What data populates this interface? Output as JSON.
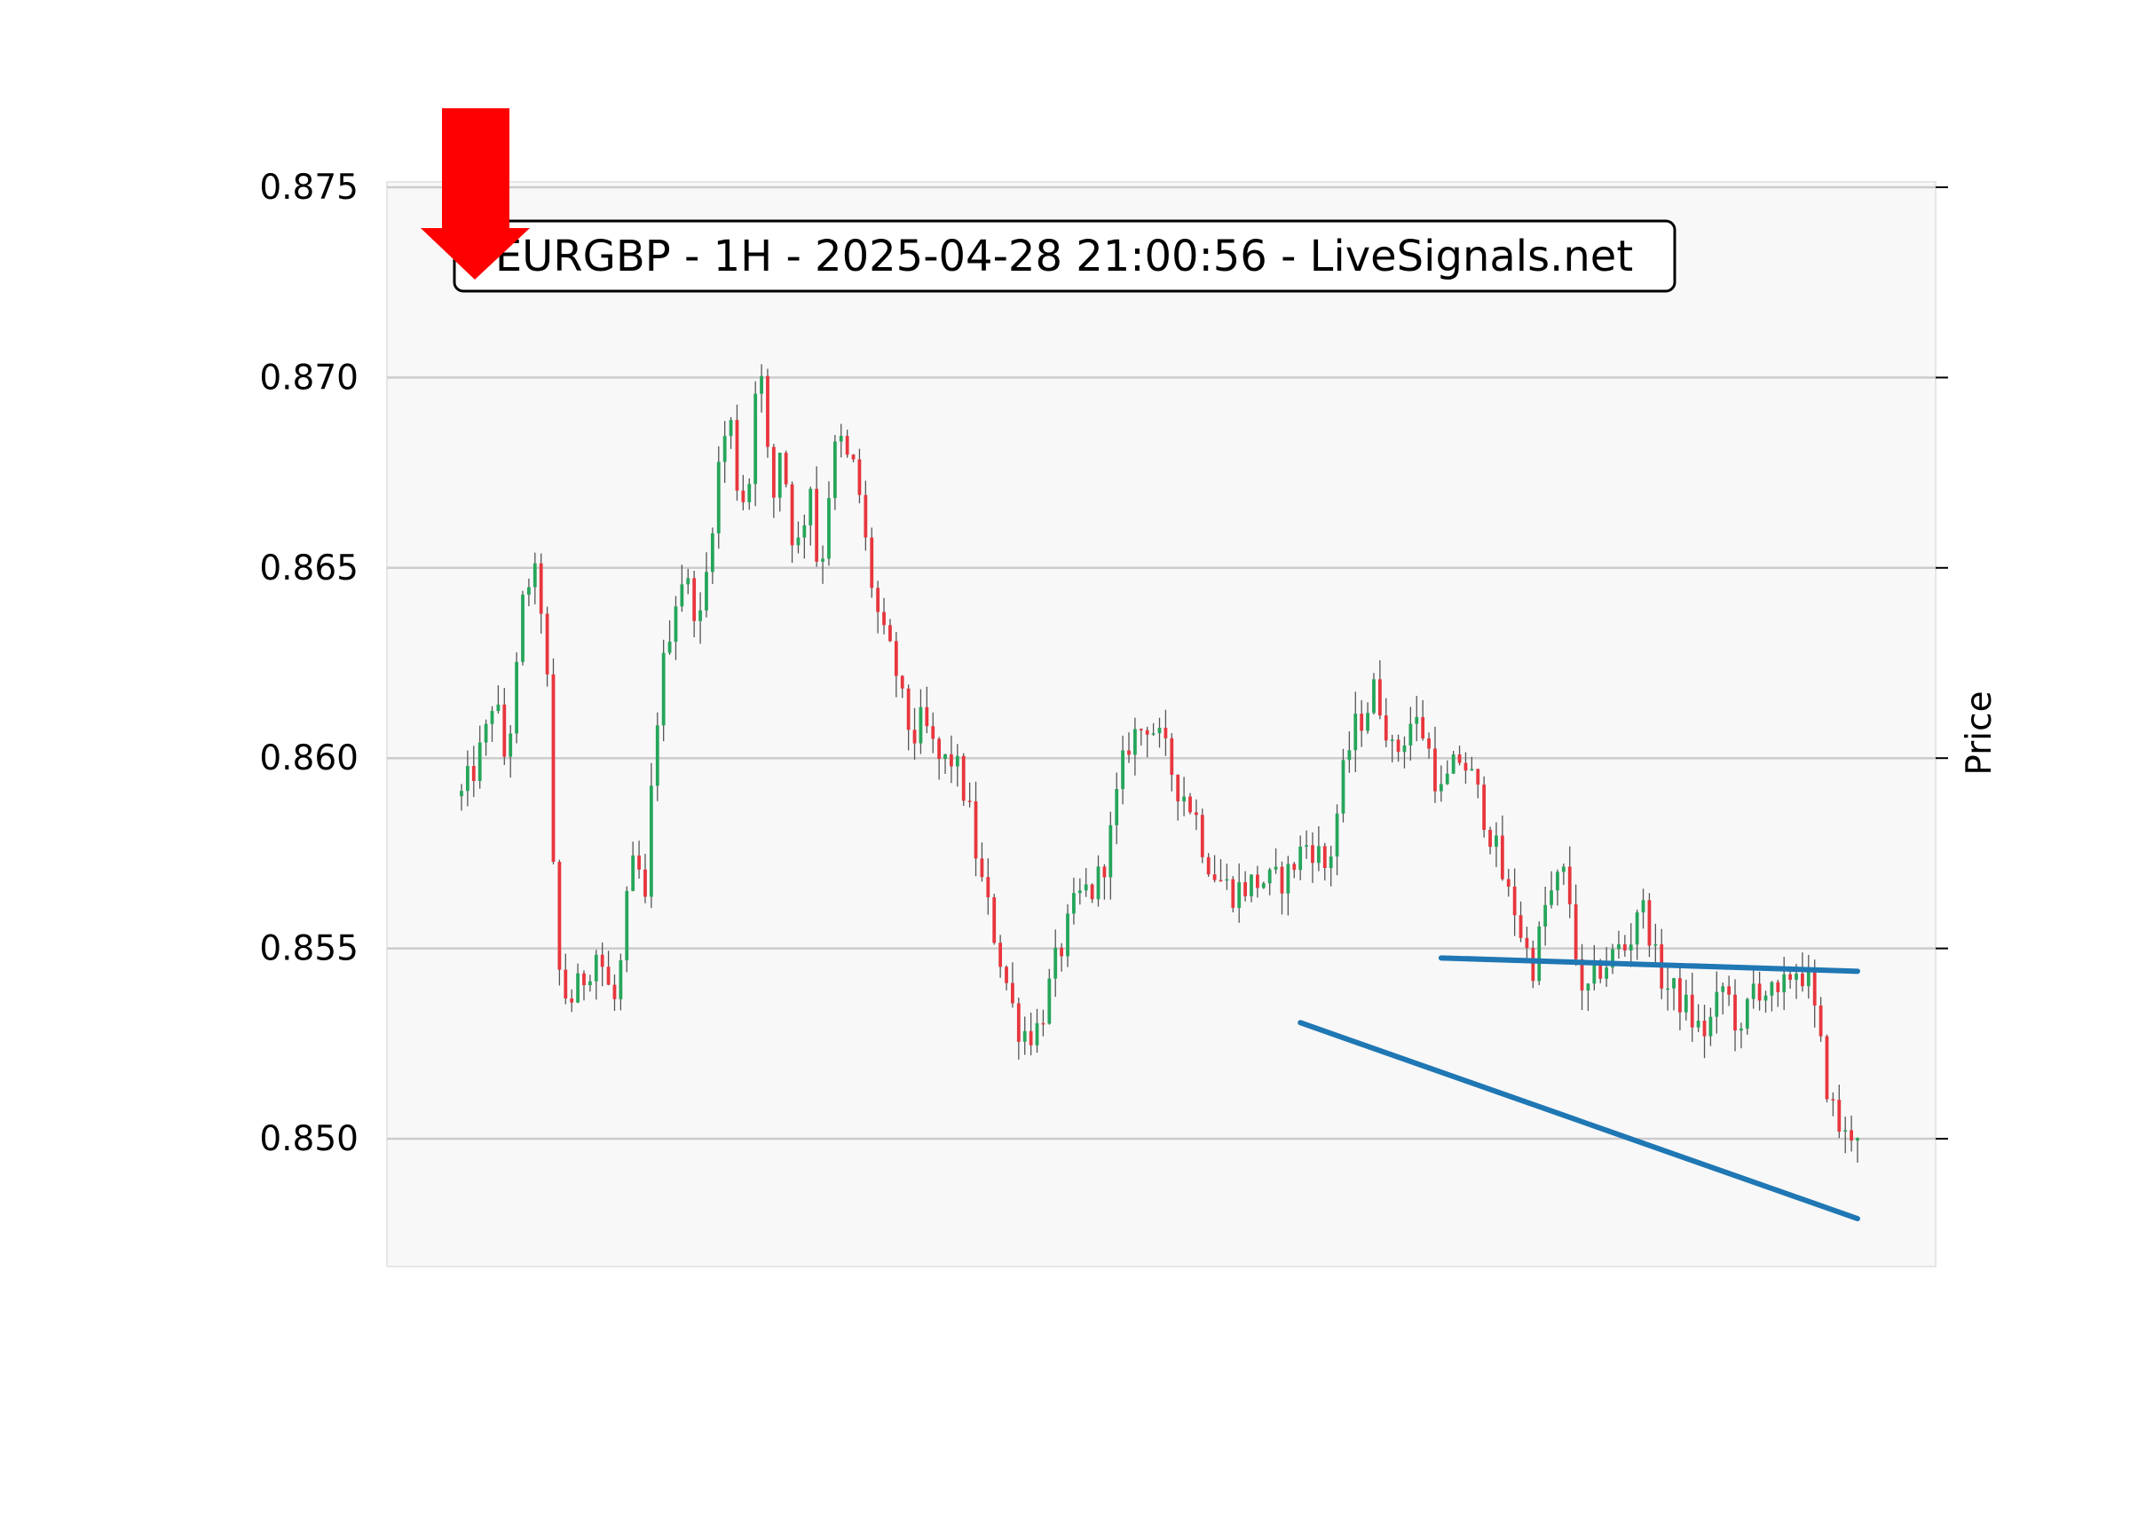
{
  "chart_data": {
    "type": "candlestick",
    "title": "EURGBP - 1H - 2025-04-28 21:00:56 - LiveSignals.net",
    "ylabel": "Price",
    "xlabel": "",
    "ylim": [
      0.8465,
      0.875
    ],
    "yticks": [
      "0.875",
      "0.870",
      "0.865",
      "0.860",
      "0.855",
      "0.850"
    ],
    "ytick_values": [
      0.875,
      0.87,
      0.865,
      0.86,
      0.855,
      0.85
    ],
    "grid": true,
    "n_candles": 229,
    "signal_marker": {
      "type": "arrow-down",
      "color": "#ff0000",
      "candle_index": 2
    },
    "trendlines": [
      {
        "name": "resistance",
        "color": "#1f77b4",
        "from": {
          "candle": 160,
          "price": 0.85475
        },
        "to": {
          "candle": 228,
          "price": 0.8544
        }
      },
      {
        "name": "support",
        "color": "#1f77b4",
        "from": {
          "candle": 137,
          "price": 0.85305
        },
        "to": {
          "candle": 228,
          "price": 0.8479
        }
      }
    ],
    "anchors": [
      [
        0,
        0.859
      ],
      [
        3,
        0.8598
      ],
      [
        5,
        0.8605
      ],
      [
        7,
        0.8618
      ],
      [
        9,
        0.86
      ],
      [
        11,
        0.8612
      ],
      [
        13,
        0.864
      ],
      [
        15,
        0.865
      ],
      [
        17,
        0.864
      ],
      [
        18,
        0.863
      ],
      [
        19,
        0.858
      ],
      [
        21,
        0.854
      ],
      [
        23,
        0.8536
      ],
      [
        25,
        0.854
      ],
      [
        27,
        0.8545
      ],
      [
        29,
        0.855
      ],
      [
        31,
        0.854
      ],
      [
        33,
        0.8535
      ],
      [
        35,
        0.856
      ],
      [
        37,
        0.8575
      ],
      [
        39,
        0.856
      ],
      [
        41,
        0.8605
      ],
      [
        43,
        0.8625
      ],
      [
        45,
        0.864
      ],
      [
        47,
        0.8648
      ],
      [
        49,
        0.8642
      ],
      [
        51,
        0.8635
      ],
      [
        53,
        0.866
      ],
      [
        55,
        0.868
      ],
      [
        57,
        0.869
      ],
      [
        59,
        0.8668
      ],
      [
        61,
        0.867
      ],
      [
        63,
        0.871
      ],
      [
        64,
        0.8695
      ],
      [
        66,
        0.8665
      ],
      [
        68,
        0.8685
      ],
      [
        70,
        0.866
      ],
      [
        72,
        0.8655
      ],
      [
        74,
        0.8675
      ],
      [
        76,
        0.8645
      ],
      [
        78,
        0.867
      ],
      [
        80,
        0.8685
      ],
      [
        82,
        0.8678
      ],
      [
        84,
        0.8675
      ],
      [
        86,
        0.8655
      ],
      [
        88,
        0.864
      ],
      [
        90,
        0.863
      ],
      [
        92,
        0.8625
      ],
      [
        94,
        0.8612
      ],
      [
        96,
        0.8605
      ],
      [
        98,
        0.861
      ],
      [
        100,
        0.8603
      ],
      [
        102,
        0.8598
      ],
      [
        104,
        0.86
      ],
      [
        106,
        0.8595
      ],
      [
        108,
        0.8585
      ],
      [
        110,
        0.857
      ],
      [
        112,
        0.856
      ],
      [
        114,
        0.855
      ],
      [
        116,
        0.854
      ],
      [
        118,
        0.853
      ],
      [
        120,
        0.8528
      ],
      [
        122,
        0.8528
      ],
      [
        124,
        0.8535
      ],
      [
        126,
        0.8545
      ],
      [
        128,
        0.8552
      ],
      [
        130,
        0.856
      ],
      [
        132,
        0.8565
      ],
      [
        134,
        0.8565
      ],
      [
        136,
        0.857
      ],
      [
        138,
        0.858
      ],
      [
        140,
        0.8595
      ],
      [
        142,
        0.8605
      ],
      [
        144,
        0.8607
      ],
      [
        146,
        0.861
      ],
      [
        148,
        0.8605
      ],
      [
        150,
        0.86
      ],
      [
        152,
        0.8593
      ],
      [
        154,
        0.859
      ],
      [
        156,
        0.8585
      ],
      [
        158,
        0.8575
      ],
      [
        160,
        0.857
      ],
      [
        162,
        0.8567
      ],
      [
        164,
        0.8565
      ],
      [
        166,
        0.8566
      ],
      [
        168,
        0.8567
      ],
      [
        170,
        0.8568
      ],
      [
        172,
        0.8567
      ],
      [
        174,
        0.8568
      ],
      [
        176,
        0.857
      ],
      [
        178,
        0.8575
      ],
      [
        180,
        0.8578
      ],
      [
        182,
        0.8575
      ],
      [
        184,
        0.857
      ],
      [
        186,
        0.8585
      ],
      [
        188,
        0.86
      ],
      [
        190,
        0.8608
      ],
      [
        192,
        0.8612
      ],
      [
        194,
        0.8618
      ],
      [
        196,
        0.8612
      ],
      [
        198,
        0.86
      ],
      [
        200,
        0.8605
      ],
      [
        202,
        0.861
      ],
      [
        204,
        0.8608
      ],
      [
        206,
        0.86
      ],
      [
        208,
        0.859
      ],
      [
        210,
        0.8595
      ],
      [
        212,
        0.86
      ],
      [
        214,
        0.8597
      ],
      [
        216,
        0.859
      ],
      [
        218,
        0.8583
      ],
      [
        220,
        0.8575
      ],
      [
        222,
        0.8565
      ],
      [
        224,
        0.856
      ],
      [
        226,
        0.855
      ],
      [
        228,
        0.8545
      ],
      [
        230,
        0.856
      ],
      [
        232,
        0.8565
      ],
      [
        234,
        0.857
      ],
      [
        236,
        0.856
      ],
      [
        238,
        0.8535
      ],
      [
        240,
        0.854
      ],
      [
        242,
        0.8545
      ],
      [
        244,
        0.8547
      ],
      [
        246,
        0.855
      ],
      [
        248,
        0.855
      ],
      [
        250,
        0.8562
      ],
      [
        252,
        0.8558
      ],
      [
        254,
        0.8545
      ],
      [
        256,
        0.854
      ],
      [
        258,
        0.8538
      ],
      [
        260,
        0.8535
      ],
      [
        262,
        0.853
      ],
      [
        264,
        0.8528
      ],
      [
        266,
        0.8532
      ],
      [
        268,
        0.854
      ],
      [
        270,
        0.8535
      ],
      [
        272,
        0.8525
      ],
      [
        274,
        0.854
      ],
      [
        276,
        0.854
      ],
      [
        278,
        0.8538
      ],
      [
        280,
        0.8535
      ],
      [
        282,
        0.8543
      ],
      [
        284,
        0.8545
      ],
      [
        286,
        0.8542
      ],
      [
        288,
        0.853
      ],
      [
        290,
        0.8515
      ],
      [
        292,
        0.8505
      ],
      [
        294,
        0.85
      ],
      [
        296,
        0.8503
      ],
      [
        298,
        0.8502
      ]
    ],
    "anchor_scale": 0.7685
  }
}
